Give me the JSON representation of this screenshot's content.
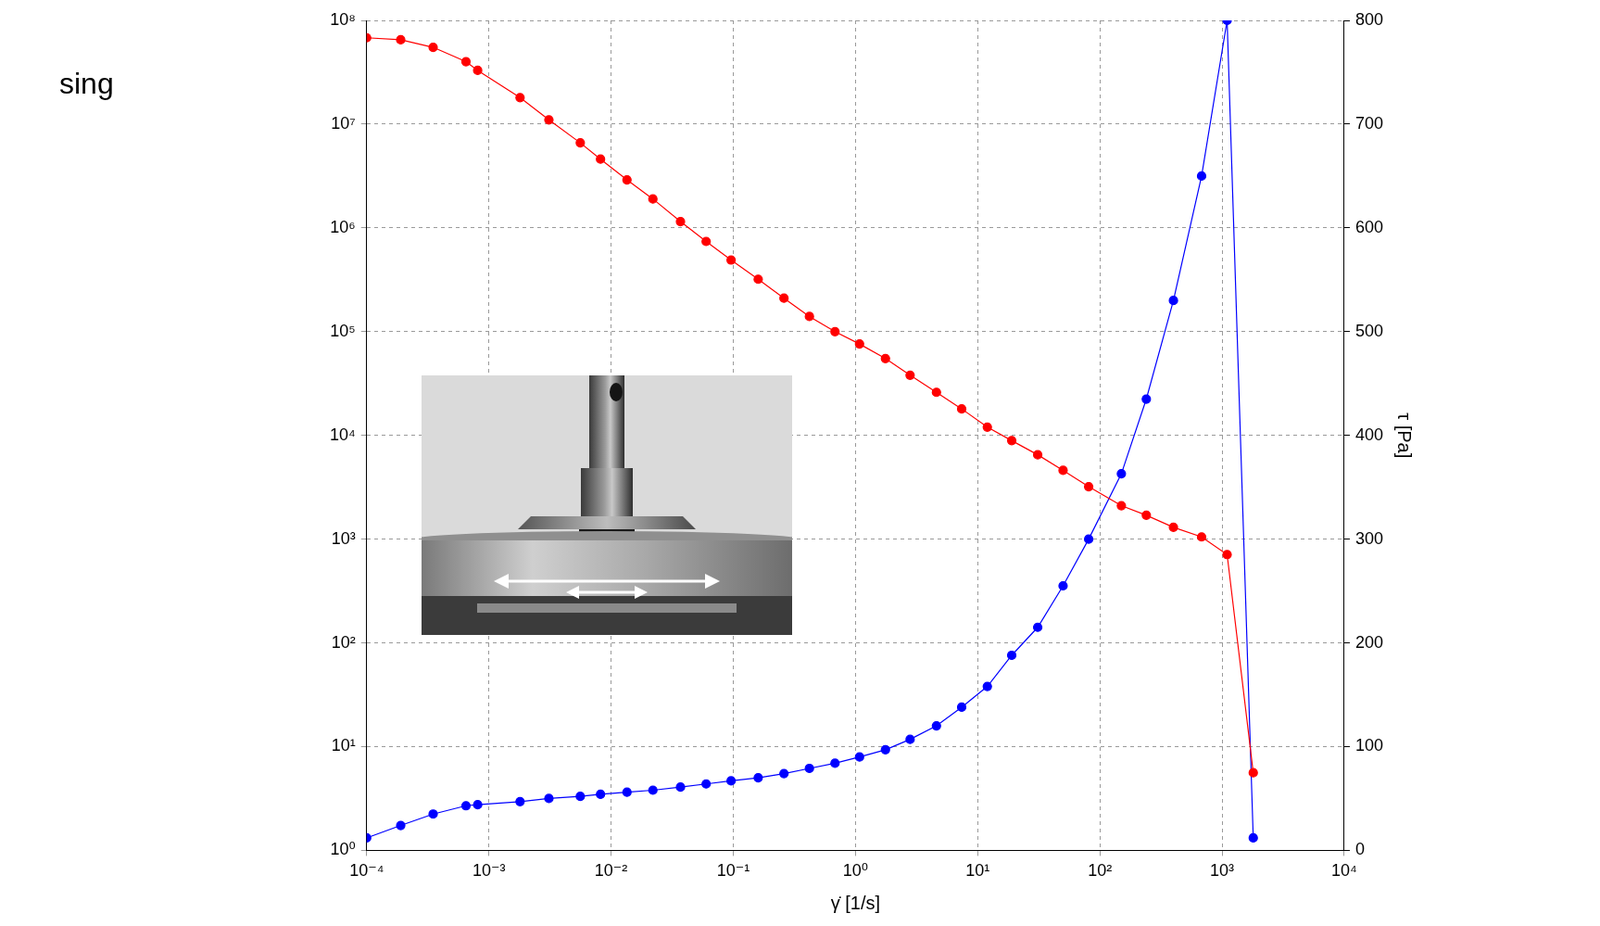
{
  "chart_data": {
    "type": "line",
    "annotations": [
      "sing"
    ],
    "x_label": "γ̇ [1/s]",
    "y2_label": "τ [Pa]",
    "log": true,
    "grid": true,
    "x": [
      0.0001,
      0.00019,
      0.00035,
      0.00065,
      0.00081,
      0.0018,
      0.0031,
      0.0056,
      0.0082,
      0.0135,
      0.022,
      0.037,
      0.06,
      0.096,
      0.16,
      0.26,
      0.42,
      0.68,
      1.08,
      1.76,
      2.8,
      4.6,
      7.4,
      12,
      19,
      31,
      50,
      81,
      150,
      240,
      400,
      680,
      1100,
      1800
    ],
    "series": [
      {
        "color": "#ff0000",
        "marker": "circle",
        "line_style": "solid",
        "axis": "y",
        "values": [
          68000000,
          65000000,
          55000000,
          40000000,
          33000000,
          18000000,
          11000000,
          6600000,
          4600000,
          2900000,
          1900000,
          1150000,
          740000,
          490000,
          320000,
          210000,
          140000,
          100000,
          76000,
          55000,
          38000,
          26000,
          18000,
          12000,
          8900,
          6500,
          4600,
          3200,
          2100,
          1700,
          1300,
          1050,
          710,
          5.6
        ]
      },
      {
        "color": "#0000ff",
        "marker": "circle",
        "line_style": "solid",
        "axis": "y2",
        "values": [
          12,
          24,
          35,
          43,
          44,
          47,
          50,
          52,
          54,
          56,
          58,
          61,
          64,
          67,
          70,
          74,
          79,
          84,
          90,
          97,
          107,
          120,
          138,
          158,
          188,
          215,
          255,
          300,
          363,
          435,
          530,
          650,
          800,
          12
        ]
      }
    ],
    "xlim": [
      0.0001,
      10000
    ],
    "xticks": [
      {
        "value": 0.0001,
        "label": "10⁻⁴"
      },
      {
        "value": 0.001,
        "label": "10⁻³"
      },
      {
        "value": 0.01,
        "label": "10⁻²"
      },
      {
        "value": 0.1,
        "label": "10⁻¹"
      },
      {
        "value": 1,
        "label": "10⁰"
      },
      {
        "value": 10,
        "label": "10¹"
      },
      {
        "value": 100,
        "label": "10²"
      },
      {
        "value": 1000,
        "label": "10³"
      },
      {
        "value": 10000,
        "label": "10⁴"
      }
    ],
    "ylim": [
      1,
      100000000
    ],
    "yticks": [
      {
        "value": 1,
        "label": "10⁰"
      },
      {
        "value": 10,
        "label": "10¹"
      },
      {
        "value": 100,
        "label": "10²"
      },
      {
        "value": 1000,
        "label": "10³"
      },
      {
        "value": 10000,
        "label": "10⁴"
      },
      {
        "value": 100000,
        "label": "10⁵"
      },
      {
        "value": 1000000,
        "label": "10⁶"
      },
      {
        "value": 10000000,
        "label": "10⁷"
      },
      {
        "value": 100000000,
        "label": "10⁸"
      }
    ],
    "y2lim": [
      0,
      800
    ],
    "y2ticks": [
      0,
      100,
      200,
      300,
      400,
      500,
      600,
      700,
      800
    ]
  }
}
